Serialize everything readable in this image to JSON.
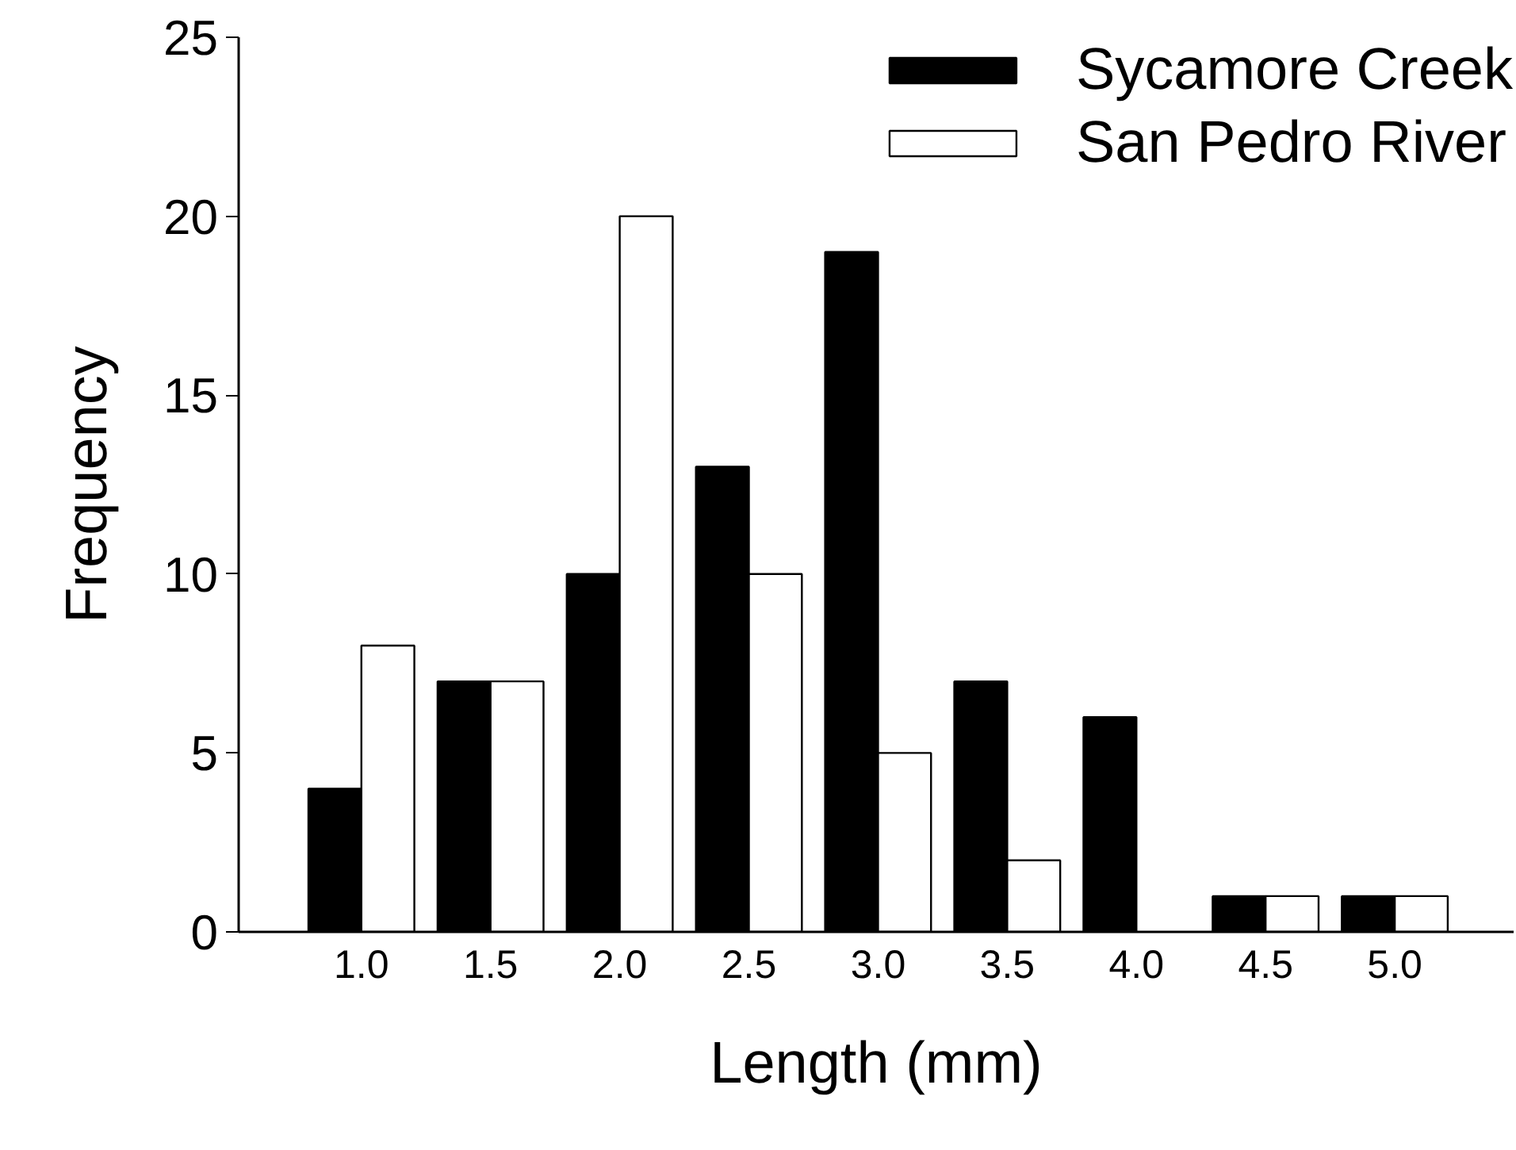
{
  "chart_data": {
    "type": "bar",
    "xlabel": "Length (mm)",
    "ylabel": "Frequency",
    "categories": [
      "1.0",
      "1.5",
      "2.0",
      "2.5",
      "3.0",
      "3.5",
      "4.0",
      "4.5",
      "5.0"
    ],
    "series": [
      {
        "name": "Sycamore Creek",
        "color": "#000000",
        "values": [
          4,
          7,
          10,
          13,
          19,
          7,
          6,
          1,
          1
        ]
      },
      {
        "name": "San Pedro River",
        "color": "#ffffff",
        "values": [
          8,
          7,
          20,
          10,
          5,
          2,
          0,
          1,
          1
        ]
      }
    ],
    "ylim": [
      0,
      25
    ],
    "yticks": [
      0,
      5,
      10,
      15,
      20,
      25
    ],
    "grid": false,
    "legend": "top right"
  }
}
